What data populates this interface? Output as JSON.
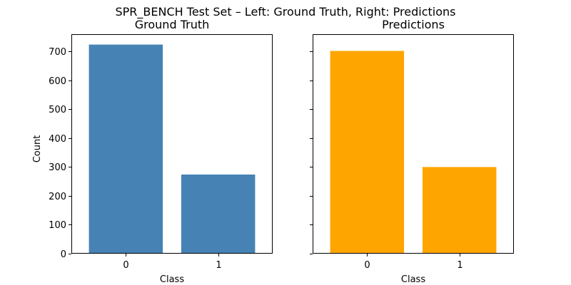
{
  "figure": {
    "suptitle": "SPR_BENCH Test Set – Left: Ground Truth, Right: Predictions"
  },
  "chart_data": [
    {
      "type": "bar",
      "title": "Ground Truth",
      "xlabel": "Class",
      "ylabel": "Count",
      "categories": [
        "0",
        "1"
      ],
      "values": [
        724,
        274
      ],
      "ylim": [
        0,
        760
      ],
      "yticks": [
        0,
        100,
        200,
        300,
        400,
        500,
        600,
        700
      ],
      "ytick_labels_visible": true,
      "color": "#4682b4",
      "grid": false,
      "legend": "none"
    },
    {
      "type": "bar",
      "title": "Predictions",
      "xlabel": "Class",
      "ylabel": "",
      "categories": [
        "0",
        "1"
      ],
      "values": [
        702,
        300
      ],
      "ylim": [
        0,
        760
      ],
      "yticks": [
        0,
        100,
        200,
        300,
        400,
        500,
        600,
        700
      ],
      "ytick_labels_visible": false,
      "color": "#ffa500",
      "grid": false,
      "legend": "none"
    }
  ]
}
